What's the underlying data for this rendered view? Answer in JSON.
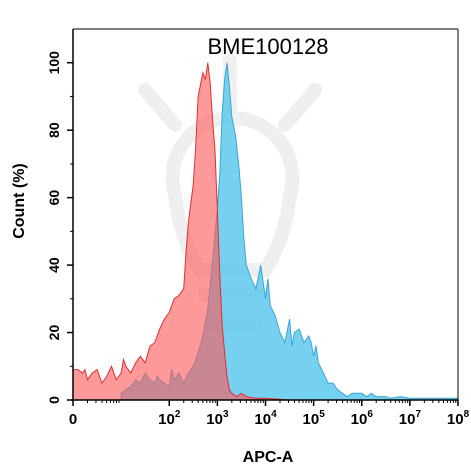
{
  "chart_data": {
    "type": "area",
    "title": "BME100128",
    "xlabel": "APC-A",
    "ylabel": "Count  (%)",
    "x_scale": "log",
    "ylim": [
      0,
      110
    ],
    "grid": false,
    "legend": "none",
    "x_ticks": [
      {
        "value": 0,
        "base": "0",
        "exp": ""
      },
      {
        "value": 100,
        "base": "10",
        "exp": "2"
      },
      {
        "value": 1000,
        "base": "10",
        "exp": "3"
      },
      {
        "value": 10000,
        "base": "10",
        "exp": "4"
      },
      {
        "value": 100000,
        "base": "10",
        "exp": "5"
      },
      {
        "value": 1000000,
        "base": "10",
        "exp": "6"
      },
      {
        "value": 10000000,
        "base": "10",
        "exp": "7"
      },
      {
        "value": 100000000,
        "base": "10",
        "exp": "8"
      }
    ],
    "y_ticks": [
      0,
      20,
      40,
      60,
      80,
      100
    ],
    "series": [
      {
        "color": "#5ec8ec",
        "stroke": "#3aa6d6",
        "points": [
          [
            1.0,
            2
          ],
          [
            1.1,
            3
          ],
          [
            1.2,
            4
          ],
          [
            1.3,
            6
          ],
          [
            1.4,
            5
          ],
          [
            1.5,
            8
          ],
          [
            1.6,
            6
          ],
          [
            1.7,
            5
          ],
          [
            1.75,
            7
          ],
          [
            1.8,
            6
          ],
          [
            1.9,
            5
          ],
          [
            2.0,
            4
          ],
          [
            2.05,
            9
          ],
          [
            2.1,
            6
          ],
          [
            2.2,
            8
          ],
          [
            2.3,
            5
          ],
          [
            2.4,
            8
          ],
          [
            2.5,
            10
          ],
          [
            2.6,
            14
          ],
          [
            2.7,
            19
          ],
          [
            2.8,
            27
          ],
          [
            2.9,
            41
          ],
          [
            3.0,
            57
          ],
          [
            3.05,
            67
          ],
          [
            3.1,
            85
          ],
          [
            3.15,
            95
          ],
          [
            3.2,
            100
          ],
          [
            3.25,
            93
          ],
          [
            3.3,
            84
          ],
          [
            3.38,
            78
          ],
          [
            3.45,
            69
          ],
          [
            3.5,
            60
          ],
          [
            3.55,
            48
          ],
          [
            3.6,
            40
          ],
          [
            3.7,
            36
          ],
          [
            3.8,
            33
          ],
          [
            3.9,
            40
          ],
          [
            4.0,
            30
          ],
          [
            4.05,
            36
          ],
          [
            4.1,
            28
          ],
          [
            4.2,
            25
          ],
          [
            4.3,
            20
          ],
          [
            4.4,
            17
          ],
          [
            4.5,
            24
          ],
          [
            4.55,
            16
          ],
          [
            4.6,
            20
          ],
          [
            4.7,
            21
          ],
          [
            4.8,
            17
          ],
          [
            4.9,
            19
          ],
          [
            4.95,
            17
          ],
          [
            5.0,
            13
          ],
          [
            5.05,
            16
          ],
          [
            5.1,
            11
          ],
          [
            5.2,
            8
          ],
          [
            5.3,
            5
          ],
          [
            5.4,
            5
          ],
          [
            5.5,
            3
          ],
          [
            5.6,
            2
          ],
          [
            5.7,
            1
          ],
          [
            5.8,
            2
          ],
          [
            5.9,
            2
          ],
          [
            6.0,
            2
          ],
          [
            6.1,
            1
          ],
          [
            6.2,
            2
          ],
          [
            6.3,
            1
          ],
          [
            6.4,
            1
          ],
          [
            6.5,
            1
          ],
          [
            6.6,
            0.5
          ],
          [
            6.8,
            1
          ],
          [
            7.0,
            0.5
          ],
          [
            7.2,
            0.5
          ],
          [
            7.5,
            0.5
          ],
          [
            7.8,
            0.5
          ],
          [
            8.0,
            0.5
          ]
        ]
      },
      {
        "color": "#fb5b5b",
        "stroke": "#e03030",
        "points": [
          [
            0.0,
            9
          ],
          [
            0.1,
            9
          ],
          [
            0.2,
            8
          ],
          [
            0.25,
            9
          ],
          [
            0.3,
            6
          ],
          [
            0.4,
            8
          ],
          [
            0.5,
            9
          ],
          [
            0.6,
            5
          ],
          [
            0.7,
            7
          ],
          [
            0.8,
            10
          ],
          [
            0.9,
            6
          ],
          [
            1.0,
            8
          ],
          [
            1.05,
            12
          ],
          [
            1.1,
            10
          ],
          [
            1.2,
            8
          ],
          [
            1.3,
            11
          ],
          [
            1.4,
            13
          ],
          [
            1.5,
            11
          ],
          [
            1.6,
            16
          ],
          [
            1.7,
            17
          ],
          [
            1.8,
            21
          ],
          [
            1.9,
            24
          ],
          [
            2.0,
            26
          ],
          [
            2.1,
            30
          ],
          [
            2.2,
            31
          ],
          [
            2.3,
            33
          ],
          [
            2.35,
            44
          ],
          [
            2.4,
            53
          ],
          [
            2.5,
            64
          ],
          [
            2.55,
            75
          ],
          [
            2.6,
            90
          ],
          [
            2.7,
            97
          ],
          [
            2.75,
            95
          ],
          [
            2.8,
            100
          ],
          [
            2.85,
            94
          ],
          [
            2.9,
            83
          ],
          [
            2.95,
            74
          ],
          [
            3.0,
            56
          ],
          [
            3.05,
            37
          ],
          [
            3.1,
            22
          ],
          [
            3.15,
            14
          ],
          [
            3.2,
            7
          ],
          [
            3.25,
            3
          ],
          [
            3.3,
            2
          ],
          [
            3.4,
            1
          ],
          [
            3.5,
            2
          ],
          [
            3.6,
            1
          ],
          [
            3.8,
            0.5
          ],
          [
            4.0,
            0.5
          ],
          [
            4.5,
            0
          ],
          [
            5.0,
            0
          ],
          [
            8.0,
            0
          ]
        ]
      }
    ]
  }
}
